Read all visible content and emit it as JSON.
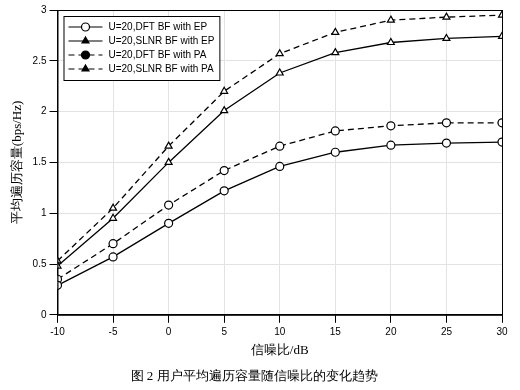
{
  "chart_data": {
    "type": "line",
    "title": "图 2 用户平均遍历容量随信噪比的变化趋势",
    "x_label": "信噪比/dB",
    "y_label": "平均遍历容量(bps/Hz)",
    "x": [
      -10,
      -5,
      0,
      5,
      10,
      15,
      20,
      25,
      30
    ],
    "series": [
      {
        "name": "U=20,DFT BF with EP",
        "color": "#000000",
        "marker": "circle",
        "line_style": "solid",
        "values": [
          0.29,
          0.57,
          0.9,
          1.22,
          1.46,
          1.6,
          1.67,
          1.69,
          1.7
        ]
      },
      {
        "name": "U=20,SLNR BF with EP",
        "color": "#000000",
        "marker": "triangle",
        "line_style": "solid",
        "values": [
          0.48,
          0.95,
          1.5,
          2.01,
          2.38,
          2.58,
          2.68,
          2.72,
          2.74
        ]
      },
      {
        "name": "U=20,DFT BF with PA",
        "color": "#000000",
        "marker": "circle",
        "line_style": "dashed",
        "values": [
          0.35,
          0.7,
          1.08,
          1.42,
          1.66,
          1.81,
          1.86,
          1.89,
          1.89
        ]
      },
      {
        "name": "U=20,SLNR BF with PA",
        "color": "#000000",
        "marker": "triangle",
        "line_style": "dashed",
        "values": [
          0.53,
          1.05,
          1.66,
          2.2,
          2.57,
          2.78,
          2.9,
          2.93,
          2.95
        ]
      }
    ],
    "xlim": [
      -10,
      30
    ],
    "xticks": [
      -10,
      -5,
      0,
      5,
      10,
      15,
      20,
      25,
      30
    ],
    "ylim": [
      0,
      3
    ],
    "yticks": [
      0,
      0.5,
      1,
      1.5,
      2,
      2.5,
      3
    ],
    "grid": true,
    "legend": "upper left"
  }
}
